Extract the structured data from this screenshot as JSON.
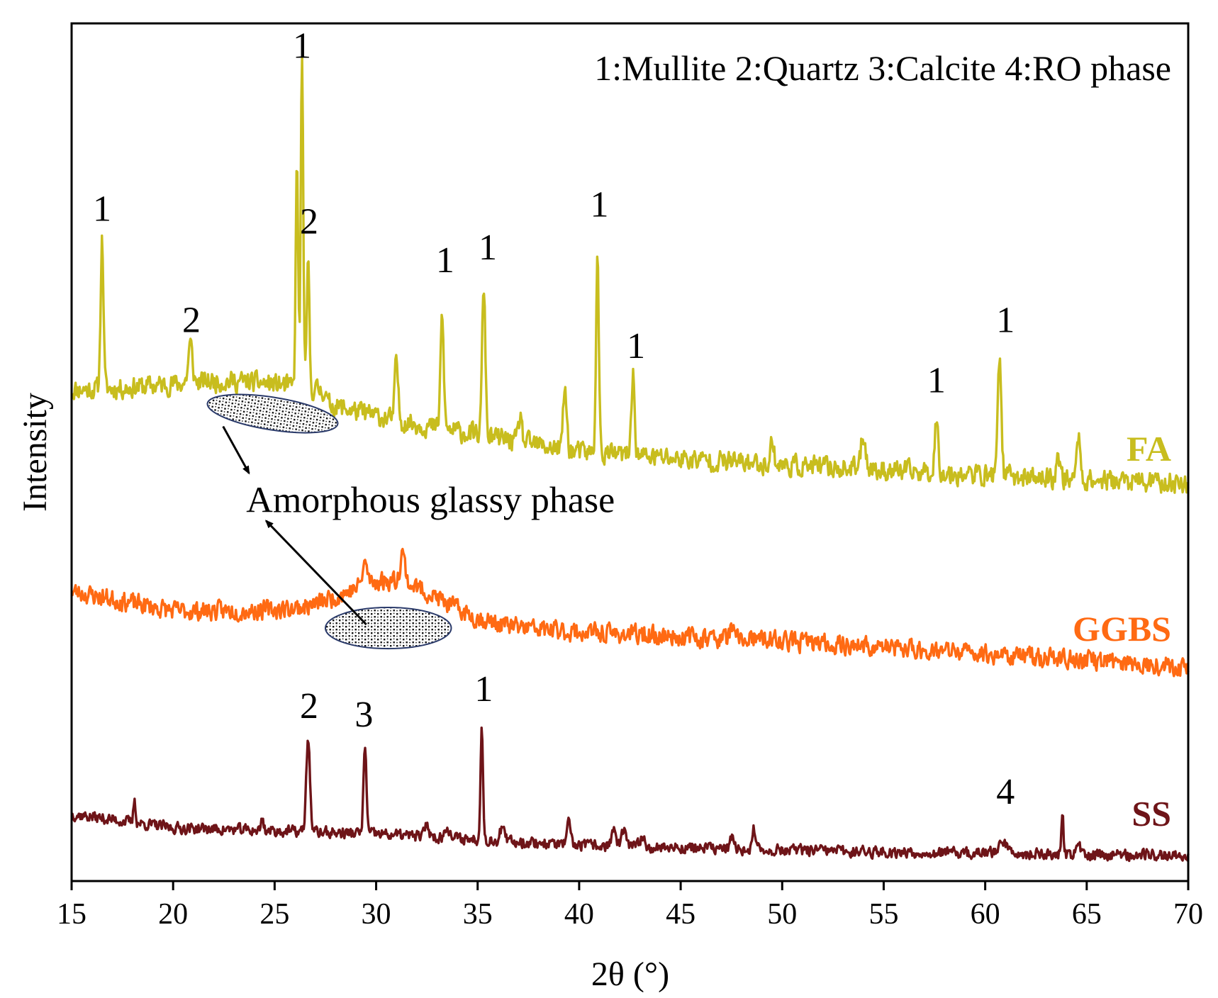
{
  "chart_data": {
    "type": "line",
    "title": "",
    "xlabel": "2θ (°)",
    "ylabel": "Intensity",
    "xlim": [
      15,
      70
    ],
    "ylim": [
      0,
      100
    ],
    "y_ticks_shown": false,
    "x_ticks": [
      15,
      20,
      25,
      30,
      35,
      40,
      45,
      50,
      55,
      60,
      65,
      70
    ],
    "x_tick_labels": [
      "15",
      "20",
      "25",
      "30",
      "35",
      "40",
      "45",
      "50",
      "55",
      "60",
      "65",
      "70"
    ],
    "legend_text": "1:Mullite 2:Quartz 3:Calcite 4:RO phase",
    "legend_placement": "top-right",
    "series": [
      {
        "name": "FA",
        "color": "#c8bd1e",
        "baseline": [
          [
            15,
            57.2
          ],
          [
            27.5,
            56.5
          ],
          [
            27.6,
            55.0
          ],
          [
            40,
            50.0
          ],
          [
            50,
            48.5
          ],
          [
            60,
            47.3
          ],
          [
            70,
            46.3
          ]
        ],
        "hump": {
          "center": 23.0,
          "width": 3.5,
          "amp": 1.5
        },
        "noise": 1.2,
        "seed": 11,
        "peaks": [
          {
            "x": 16.5,
            "height": 17.5,
            "width": 0.07
          },
          {
            "x": 20.85,
            "height": 4.5,
            "width": 0.1
          },
          {
            "x": 26.1,
            "height": 26.0,
            "width": 0.06
          },
          {
            "x": 26.35,
            "height": 38.5,
            "width": 0.06
          },
          {
            "x": 26.65,
            "height": 15.0,
            "width": 0.06
          },
          {
            "x": 31.0,
            "height": 7.0,
            "width": 0.08
          },
          {
            "x": 33.25,
            "height": 13.0,
            "width": 0.08
          },
          {
            "x": 35.3,
            "height": 17.5,
            "width": 0.08
          },
          {
            "x": 37.1,
            "height": 3.0,
            "width": 0.08
          },
          {
            "x": 39.3,
            "height": 7.0,
            "width": 0.09
          },
          {
            "x": 40.9,
            "height": 22.5,
            "width": 0.07
          },
          {
            "x": 42.65,
            "height": 9.5,
            "width": 0.08
          },
          {
            "x": 49.5,
            "height": 2.5,
            "width": 0.1
          },
          {
            "x": 54.0,
            "height": 4.0,
            "width": 0.12
          },
          {
            "x": 57.6,
            "height": 6.0,
            "width": 0.09
          },
          {
            "x": 60.7,
            "height": 14.0,
            "width": 0.09
          },
          {
            "x": 63.6,
            "height": 2.5,
            "width": 0.1
          },
          {
            "x": 64.6,
            "height": 5.0,
            "width": 0.09
          }
        ]
      },
      {
        "name": "GGBS",
        "color": "#ff6a13",
        "baseline": [
          [
            15,
            33.8
          ],
          [
            20,
            31.5
          ],
          [
            25,
            31.5
          ],
          [
            40,
            29.0
          ],
          [
            50,
            28.0
          ],
          [
            60,
            26.5
          ],
          [
            70,
            25.0
          ]
        ],
        "hump": {
          "center": 30.8,
          "width": 2.3,
          "amp": 4.5
        },
        "noise": 1.1,
        "seed": 23,
        "peaks": [
          {
            "x": 29.45,
            "height": 2.5,
            "width": 0.12
          },
          {
            "x": 31.3,
            "height": 3.5,
            "width": 0.12
          },
          {
            "x": 47.5,
            "height": 1.2,
            "width": 0.1
          }
        ]
      },
      {
        "name": "SS",
        "color": "#6e1418",
        "baseline": [
          [
            15,
            7.8
          ],
          [
            20,
            6.2
          ],
          [
            30,
            5.5
          ],
          [
            40,
            4.2
          ],
          [
            50,
            3.6
          ],
          [
            60,
            3.2
          ],
          [
            70,
            3.0
          ]
        ],
        "hump": {
          "center": 0,
          "width": 1,
          "amp": 0
        },
        "noise": 0.65,
        "seed": 37,
        "peaks": [
          {
            "x": 18.1,
            "height": 2.8,
            "width": 0.05
          },
          {
            "x": 24.4,
            "height": 1.5,
            "width": 0.06
          },
          {
            "x": 26.65,
            "height": 11.0,
            "width": 0.09
          },
          {
            "x": 29.45,
            "height": 10.5,
            "width": 0.07
          },
          {
            "x": 32.5,
            "height": 1.5,
            "width": 0.1
          },
          {
            "x": 33.5,
            "height": 1.5,
            "width": 0.1
          },
          {
            "x": 35.2,
            "height": 13.5,
            "width": 0.06
          },
          {
            "x": 36.2,
            "height": 1.5,
            "width": 0.1
          },
          {
            "x": 39.5,
            "height": 2.5,
            "width": 0.08
          },
          {
            "x": 41.7,
            "height": 2.0,
            "width": 0.1
          },
          {
            "x": 42.2,
            "height": 1.8,
            "width": 0.1
          },
          {
            "x": 43.1,
            "height": 1.3,
            "width": 0.1
          },
          {
            "x": 47.5,
            "height": 1.3,
            "width": 0.08
          },
          {
            "x": 48.6,
            "height": 2.3,
            "width": 0.07
          },
          {
            "x": 60.9,
            "height": 1.2,
            "width": 0.3
          },
          {
            "x": 63.8,
            "height": 5.0,
            "width": 0.05
          },
          {
            "x": 64.6,
            "height": 1.3,
            "width": 0.08
          }
        ]
      }
    ],
    "series_labels": [
      {
        "name": "FA",
        "text": "FA",
        "color": "#c8bd1e",
        "y": 49
      },
      {
        "name": "GGBS",
        "text": "GGBS",
        "color": "#ff6a13",
        "y": 28
      },
      {
        "name": "SS",
        "text": "SS",
        "color": "#6e1418",
        "y": 6.5
      }
    ],
    "peak_labels": [
      {
        "series": "FA",
        "x": 16.5,
        "y": 77,
        "text": "1"
      },
      {
        "series": "FA",
        "x": 20.9,
        "y": 64,
        "text": "2"
      },
      {
        "series": "FA",
        "x": 26.35,
        "y": 96,
        "text": "1"
      },
      {
        "series": "FA",
        "x": 26.7,
        "y": 75.5,
        "text": "2"
      },
      {
        "series": "FA",
        "x": 33.4,
        "y": 71,
        "text": "1"
      },
      {
        "series": "FA",
        "x": 35.5,
        "y": 72.5,
        "text": "1"
      },
      {
        "series": "FA",
        "x": 41.0,
        "y": 77.5,
        "text": "1"
      },
      {
        "series": "FA",
        "x": 42.8,
        "y": 61,
        "text": "1"
      },
      {
        "series": "FA",
        "x": 57.6,
        "y": 57,
        "text": "1"
      },
      {
        "series": "FA",
        "x": 61.0,
        "y": 64,
        "text": "1"
      },
      {
        "series": "SS",
        "x": 26.7,
        "y": 19,
        "text": "2"
      },
      {
        "series": "SS",
        "x": 29.4,
        "y": 18,
        "text": "3"
      },
      {
        "series": "SS",
        "x": 35.3,
        "y": 21,
        "text": "1"
      },
      {
        "series": "SS",
        "x": 61.0,
        "y": 9,
        "text": "4"
      }
    ],
    "annotation": {
      "text": "Amorphous glassy phase",
      "x": 23.6,
      "y": 43,
      "regions": [
        {
          "series": "FA",
          "x_center": 24.9,
          "y_center": 54.5,
          "x_radius": 3.25,
          "y_radius": 1.9,
          "rotation": "slight-tilt"
        },
        {
          "series": "GGBS",
          "x_center": 30.6,
          "y_center": 29.5,
          "x_radius": 3.1,
          "y_radius": 2.4,
          "rotation": "none"
        }
      ]
    }
  }
}
